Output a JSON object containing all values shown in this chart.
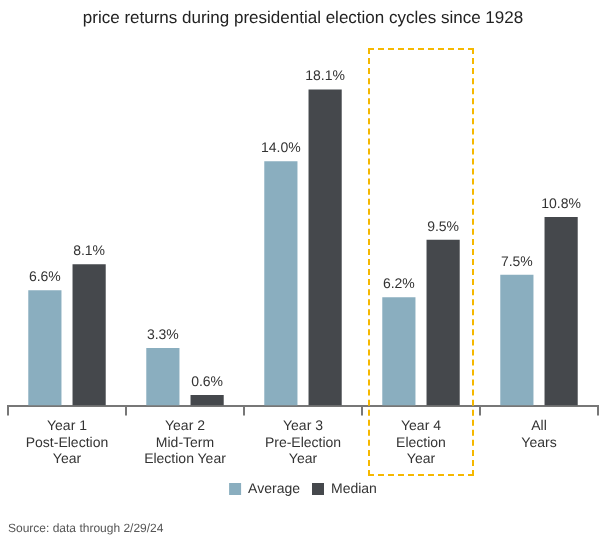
{
  "chart_data": {
    "type": "bar",
    "title": "price returns during presidential election cycles since 1928",
    "categories": [
      "Year 1\nPost-Election\nYear",
      "Year 2\nMid-Term\nElection Year",
      "Year 3\nPre-Election\nYear",
      "Year 4\nElection\nYear",
      "All\nYears"
    ],
    "tick_labels": "x",
    "series": [
      {
        "name": "Average",
        "color": "#8aaebf",
        "values": [
          6.6,
          3.3,
          14.0,
          6.2,
          7.5
        ],
        "value_labels": [
          "6.6%",
          "3.3%",
          "14.0%",
          "6.2%",
          "7.5%"
        ]
      },
      {
        "name": "Median",
        "color": "#45484c",
        "values": [
          8.1,
          0.6,
          18.1,
          9.5,
          10.8
        ],
        "value_labels": [
          "8.1%",
          "0.6%",
          "18.1%",
          "9.5%",
          "10.8%"
        ]
      }
    ],
    "legend": "bottom",
    "annotations": [
      "Source: data through 2/29/24"
    ]
  }
}
